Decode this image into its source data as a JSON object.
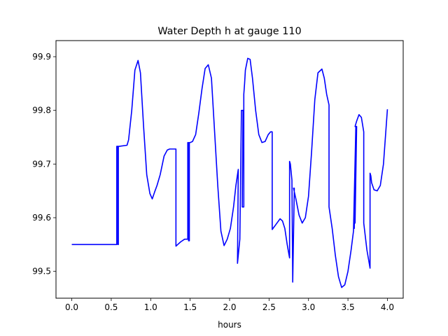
{
  "chart_data": {
    "type": "line",
    "title": "Water Depth h at gauge 110",
    "xlabel": "hours",
    "ylabel": "",
    "xlim": [
      -0.2,
      4.2
    ],
    "ylim": [
      99.45,
      99.93
    ],
    "xticks": [
      0.0,
      0.5,
      1.0,
      1.5,
      2.0,
      2.5,
      3.0,
      3.5,
      4.0
    ],
    "xtick_labels": [
      "0.0",
      "0.5",
      "1.0",
      "1.5",
      "2.0",
      "2.5",
      "3.0",
      "3.5",
      "4.0"
    ],
    "yticks": [
      99.5,
      99.6,
      99.7,
      99.8,
      99.9
    ],
    "ytick_labels": [
      "99.5",
      "99.6",
      "99.7",
      "99.8",
      "99.9"
    ],
    "grid": false,
    "series": [
      {
        "color": "#0000ff",
        "x": [
          0.0,
          0.2,
          0.4,
          0.5,
          0.57,
          0.57,
          0.585,
          0.585,
          0.59,
          0.59,
          0.6,
          0.7,
          0.72,
          0.76,
          0.8,
          0.84,
          0.87,
          0.91,
          0.95,
          0.99,
          1.02,
          1.05,
          1.08,
          1.12,
          1.17,
          1.21,
          1.24,
          1.28,
          1.32,
          1.32,
          1.38,
          1.43,
          1.47,
          1.47,
          1.48,
          1.48,
          1.49,
          1.49,
          1.5,
          1.53,
          1.57,
          1.61,
          1.65,
          1.69,
          1.73,
          1.77,
          1.81,
          1.85,
          1.89,
          1.93,
          1.97,
          2.01,
          2.05,
          2.08,
          2.11,
          2.1,
          2.13,
          2.15,
          2.17,
          2.16,
          2.18,
          2.18,
          2.19,
          2.2,
          2.23,
          2.26,
          2.29,
          2.33,
          2.37,
          2.41,
          2.45,
          2.49,
          2.52,
          2.54,
          2.54,
          2.6,
          2.64,
          2.67,
          2.7,
          2.73,
          2.76,
          2.76,
          2.77,
          2.79,
          2.8,
          2.8,
          2.82,
          2.81,
          2.84,
          2.88,
          2.92,
          2.96,
          3.0,
          3.04,
          3.08,
          3.12,
          3.17,
          3.2,
          3.23,
          3.26,
          3.26,
          3.3,
          3.34,
          3.38,
          3.42,
          3.46,
          3.5,
          3.54,
          3.57,
          3.6,
          3.58,
          3.6,
          3.59,
          3.61,
          3.59,
          3.61,
          3.64,
          3.67,
          3.7,
          3.7,
          3.74,
          3.78,
          3.78,
          3.79,
          3.8,
          3.83,
          3.87,
          3.91,
          3.95,
          4.0
        ],
        "y": [
          99.55,
          99.55,
          99.55,
          99.55,
          99.55,
          99.733,
          99.733,
          99.55,
          99.55,
          99.733,
          99.733,
          99.735,
          99.745,
          99.8,
          99.875,
          99.893,
          99.87,
          99.77,
          99.68,
          99.645,
          99.635,
          99.648,
          99.66,
          99.68,
          99.715,
          99.726,
          99.728,
          99.728,
          99.728,
          99.547,
          99.555,
          99.56,
          99.56,
          99.74,
          99.74,
          99.557,
          99.557,
          99.74,
          99.74,
          99.742,
          99.755,
          99.795,
          99.84,
          99.878,
          99.885,
          99.86,
          99.76,
          99.66,
          99.575,
          99.548,
          99.56,
          99.58,
          99.62,
          99.66,
          99.69,
          99.515,
          99.56,
          99.8,
          99.8,
          99.62,
          99.62,
          99.83,
          99.85,
          99.875,
          99.897,
          99.895,
          99.86,
          99.8,
          99.755,
          99.74,
          99.742,
          99.755,
          99.76,
          99.76,
          99.578,
          99.59,
          99.598,
          99.594,
          99.58,
          99.55,
          99.525,
          99.705,
          99.7,
          99.67,
          99.48,
          99.48,
          99.655,
          99.655,
          99.635,
          99.605,
          99.59,
          99.6,
          99.64,
          99.725,
          99.82,
          99.87,
          99.877,
          99.86,
          99.83,
          99.81,
          99.62,
          99.58,
          99.53,
          99.49,
          99.47,
          99.475,
          99.5,
          99.54,
          99.575,
          99.77,
          99.58,
          99.765,
          99.59,
          99.77,
          99.77,
          99.78,
          99.792,
          99.787,
          99.76,
          99.59,
          99.54,
          99.506,
          99.683,
          99.678,
          99.665,
          99.652,
          99.65,
          99.66,
          99.7,
          99.802
        ]
      }
    ]
  }
}
